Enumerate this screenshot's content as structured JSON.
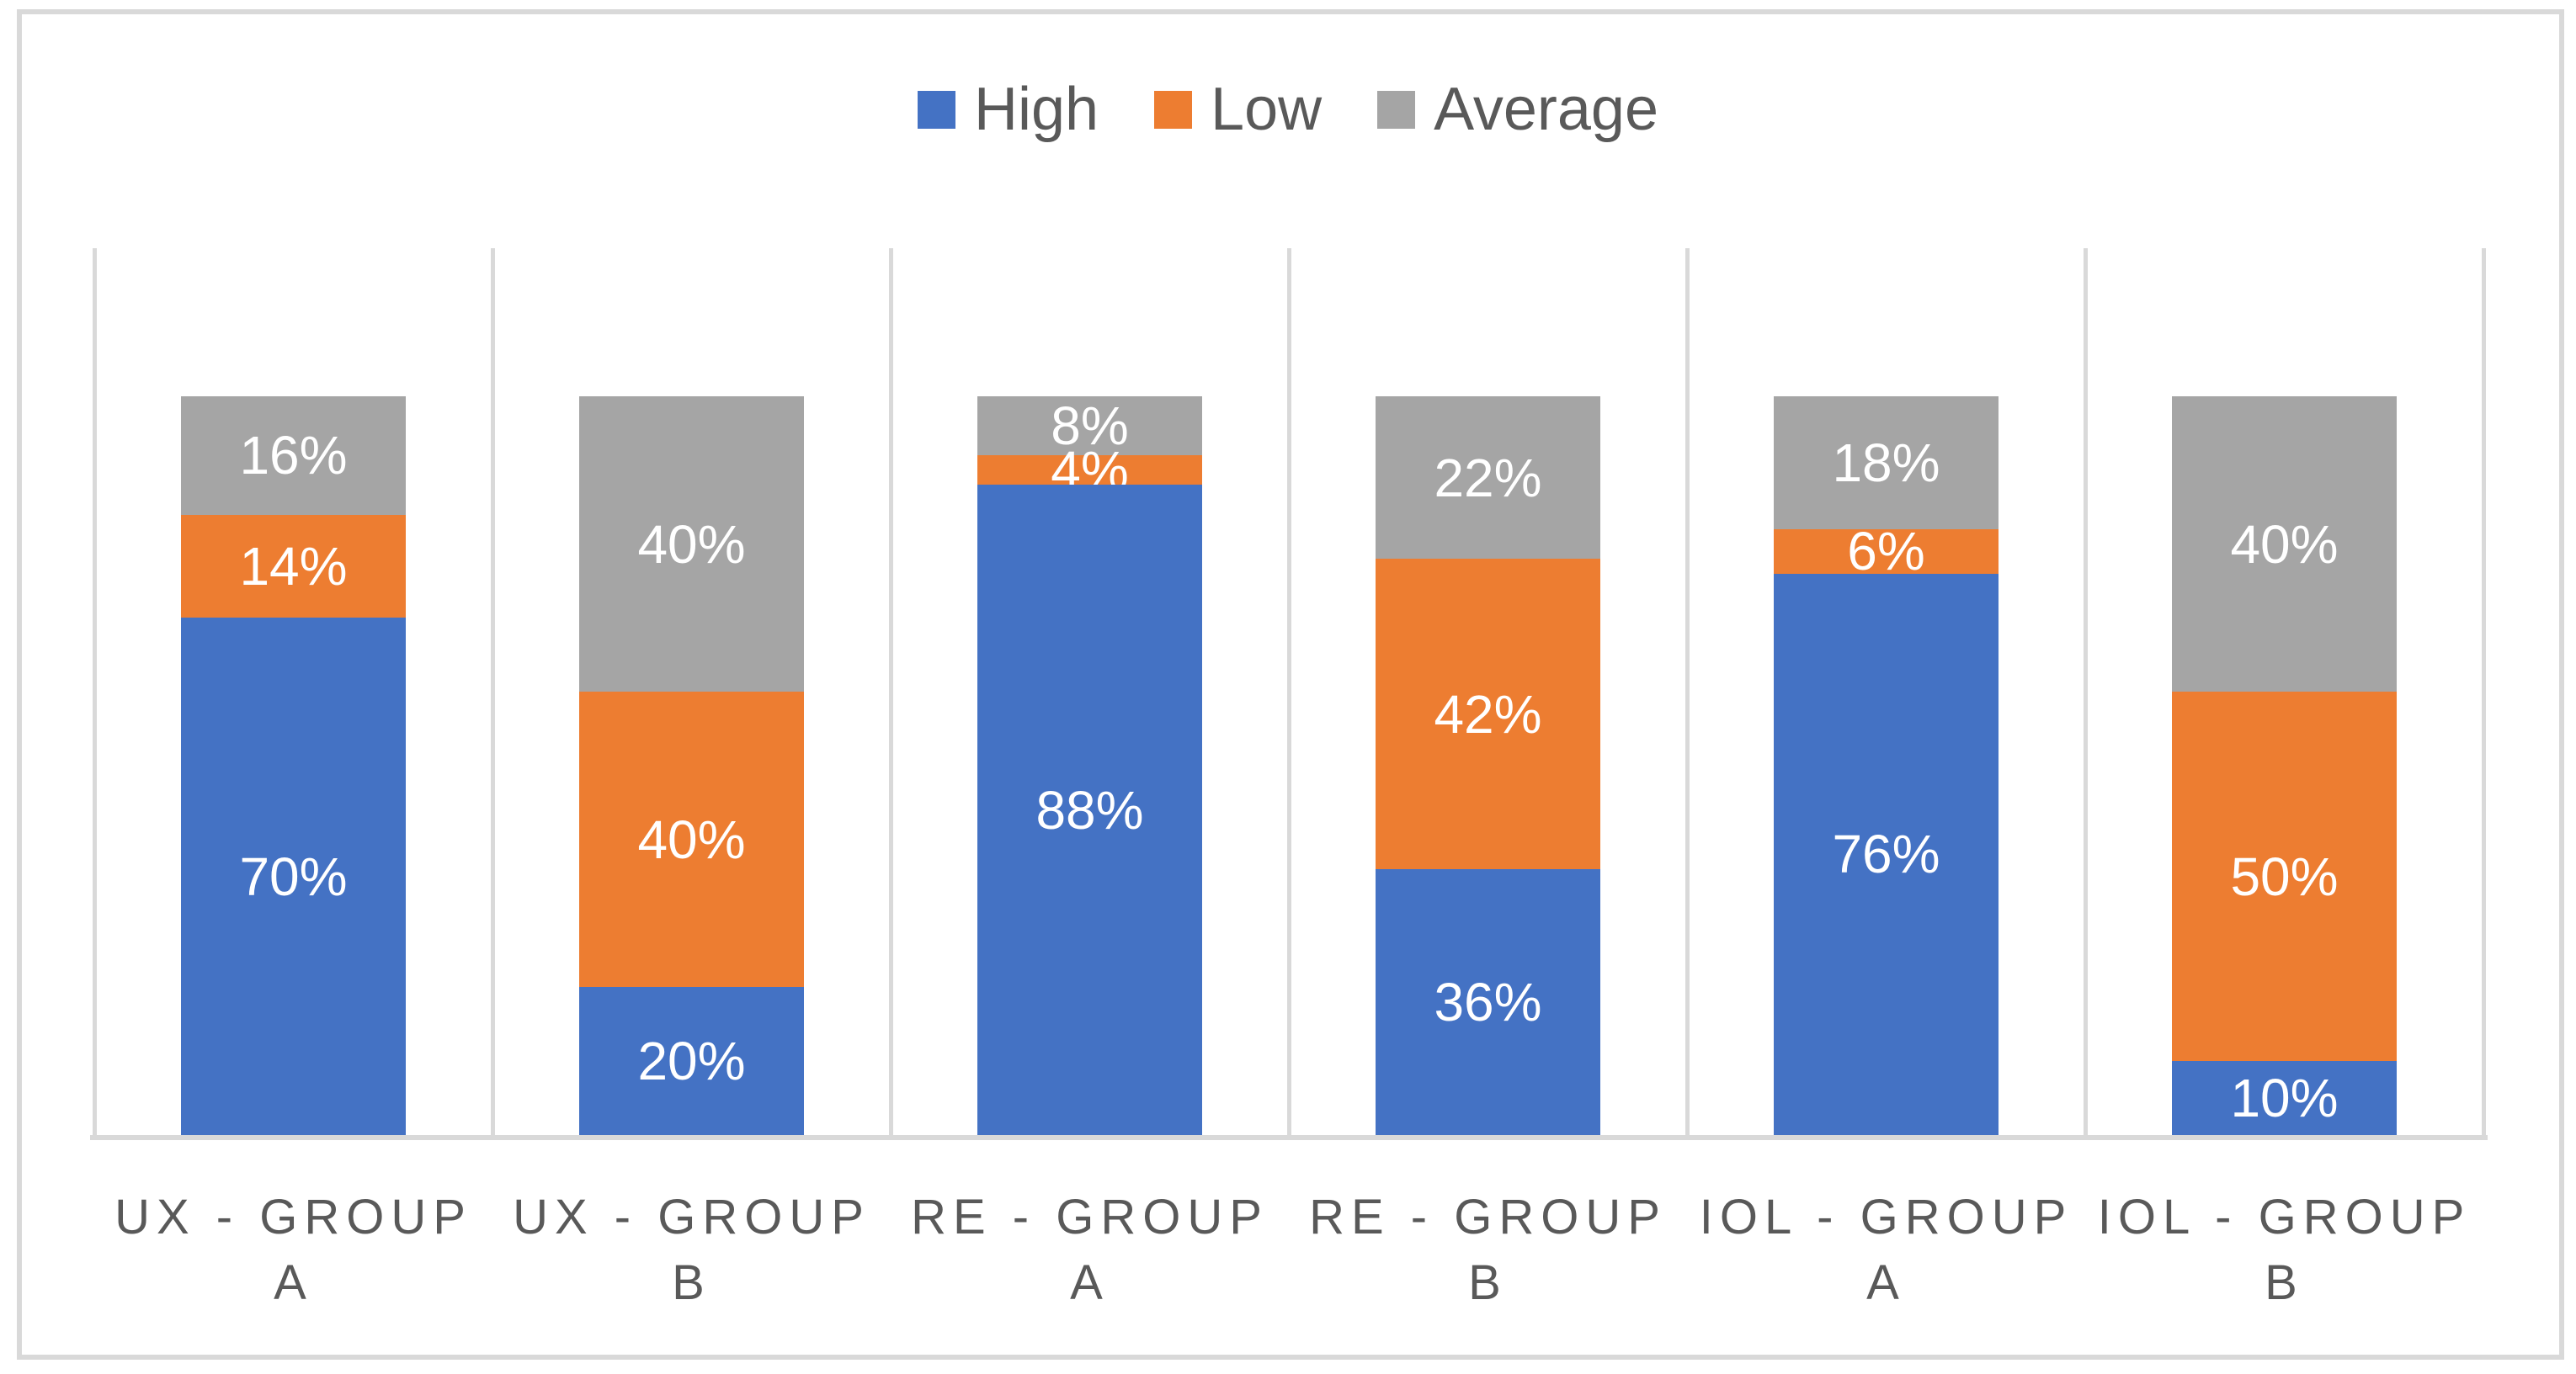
{
  "figure": {
    "background": "#FFFFFF",
    "border_color": "#D9D9D9"
  },
  "legend": {
    "position": "top-center",
    "items": [
      {
        "label": "High",
        "color": "#4472C4"
      },
      {
        "label": "Low",
        "color": "#ED7D31"
      },
      {
        "label": "Average",
        "color": "#A5A5A5"
      }
    ]
  },
  "chart_data": {
    "type": "bar",
    "variant": "100%-stacked-column",
    "title": "",
    "categories": [
      {
        "lines": [
          "UX - GROUP",
          "A"
        ]
      },
      {
        "lines": [
          "UX - GROUP",
          "B"
        ]
      },
      {
        "lines": [
          "RE - GROUP",
          "A"
        ]
      },
      {
        "lines": [
          "RE - GROUP",
          "B"
        ]
      },
      {
        "lines": [
          "IOL - GROUP",
          "A"
        ]
      },
      {
        "lines": [
          "IOL - GROUP",
          "B"
        ]
      }
    ],
    "series": [
      {
        "name": "High",
        "color": "#4472C4",
        "values": [
          70,
          20,
          88,
          36,
          76,
          10
        ]
      },
      {
        "name": "Low",
        "color": "#ED7D31",
        "values": [
          14,
          40,
          4,
          42,
          6,
          50
        ]
      },
      {
        "name": "Average",
        "color": "#A5A5A5",
        "values": [
          16,
          40,
          8,
          22,
          18,
          40
        ]
      }
    ],
    "stack_order_bottom_to_top": [
      "High",
      "Low",
      "Average"
    ],
    "data_label_format": "{value}%",
    "data_label_color": "#FFFFFF",
    "y_axis": {
      "min": 0,
      "max": 120,
      "unit": "percent",
      "labels_visible": false
    },
    "gridlines": {
      "vertical": true,
      "horizontal": false,
      "color": "#D9D9D9"
    },
    "axis_line_color": "#D9D9D9",
    "category_label_color": "#595959",
    "legend_position": "top"
  }
}
